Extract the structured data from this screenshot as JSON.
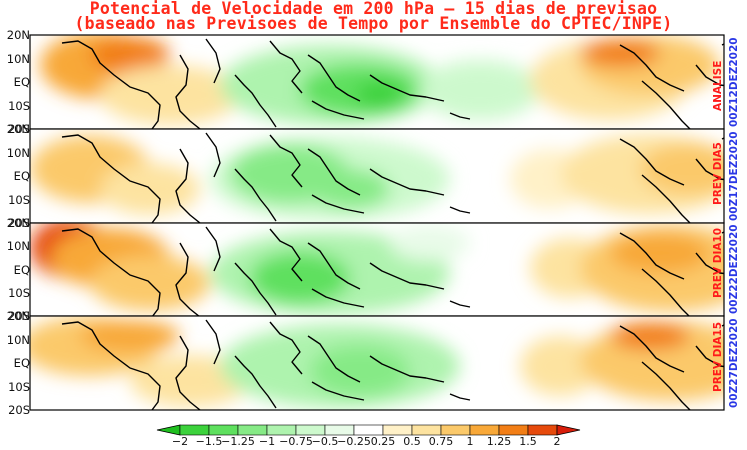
{
  "title": {
    "line1": "Potencial de Velocidade em 200 hPa – 15 dias de previsao",
    "line2": "(baseado nas Previsoes de Tempo por Ensemble do CPTEC/INPE)"
  },
  "panels": [
    {
      "label": "ANALISE",
      "date": "00Z12DEZ2020"
    },
    {
      "label": "PREV DIA5",
      "date": "00Z17DEZ2020"
    },
    {
      "label": "PREV DIA10",
      "date": "00Z22DEZ2020"
    },
    {
      "label": "PREV DIA15",
      "date": "00Z27DEZ2020"
    }
  ],
  "lat_labels": [
    "20N",
    "10N",
    "EQ",
    "10S",
    "20S"
  ],
  "colorbar": {
    "ticks": [
      "−2",
      "−1.5",
      "−1.25",
      "−1",
      "−0.75",
      "−0.5",
      "−0.25",
      "0.25",
      "0.5",
      "0.75",
      "1",
      "1.25",
      "1.5",
      "2"
    ],
    "colors": [
      "#1fbf1f",
      "#3cd23c",
      "#5ee05e",
      "#86ea86",
      "#aef3ae",
      "#cdf9cd",
      "#e8fbe8",
      "#ffffff",
      "#fff1c8",
      "#fde3a0",
      "#fbc96a",
      "#f8a838",
      "#f27e16",
      "#e64a0c",
      "#d81e0a"
    ]
  },
  "colors": {
    "positive": "#f27e16",
    "negative": "#3cd23c",
    "title": "#ff2a1a"
  }
}
